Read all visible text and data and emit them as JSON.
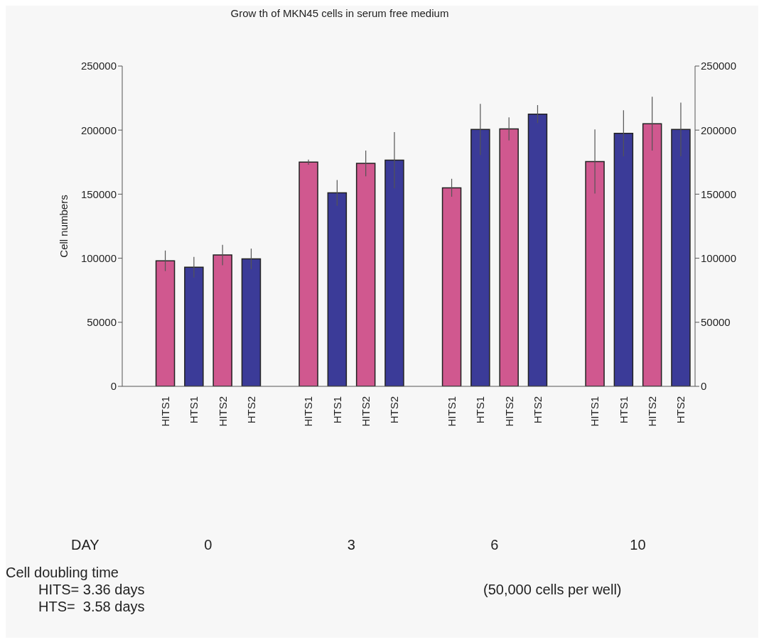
{
  "chart_data": {
    "type": "bar",
    "title": "Grow th of MKN45 cells in serum free medium",
    "ylabel": "Cell numbers",
    "categories": [
      null,
      "HITS1",
      "HTS1",
      "HITS2",
      "HTS2",
      null,
      "HITS1",
      "HTS1",
      "HITS2",
      "HTS2",
      null,
      "HITS1",
      "HTS1",
      "HITS2",
      "HTS2",
      null,
      "HITS1",
      "HTS1",
      "HITS2",
      "HTS2"
    ],
    "values": [
      null,
      98000,
      93000,
      102500,
      99500,
      null,
      175000,
      151000,
      174000,
      176500,
      null,
      155000,
      200500,
      201000,
      212500,
      null,
      175500,
      197500,
      205000,
      200500
    ],
    "errors": [
      null,
      8000,
      8000,
      8000,
      8000,
      null,
      2000,
      10000,
      10000,
      22000,
      null,
      7000,
      20000,
      9000,
      7000,
      null,
      25000,
      18000,
      21000,
      21000
    ],
    "colors": [
      "#d0588f",
      "#d0588f",
      "#3b3b98",
      "#d0588f",
      "#3b3b98",
      "#d0588f",
      "#d0588f",
      "#3b3b98",
      "#d0588f",
      "#3b3b98",
      "#d0588f",
      "#d0588f",
      "#3b3b98",
      "#d0588f",
      "#3b3b98",
      "#d0588f",
      "#d0588f",
      "#3b3b98",
      "#d0588f",
      "#3b3b98"
    ],
    "ylim": [
      0,
      250000
    ],
    "yticks": [
      0,
      50000,
      100000,
      150000,
      200000,
      250000
    ],
    "y2lim": [
      0,
      250000
    ],
    "y2ticks": [
      0,
      50000,
      100000,
      150000,
      200000,
      250000
    ],
    "annotations": [
      "DAY",
      "0",
      "3",
      "6",
      "10",
      "Cell doubling time",
      "HITS= 3.36 days",
      "HTS=  3.58 days",
      "(50,000 cells per well)"
    ]
  }
}
